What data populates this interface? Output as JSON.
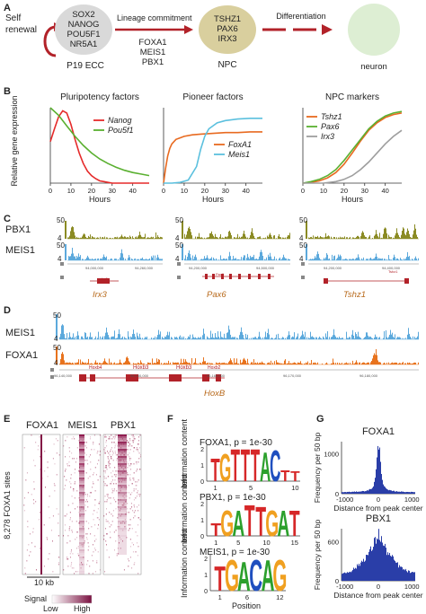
{
  "panel_a": {
    "letter": "A",
    "self_renewal": [
      "Self",
      "renewal"
    ],
    "ecc_factors": [
      "SOX2",
      "NANOG",
      "POU5F1",
      "NR5A1"
    ],
    "ecc_label": "P19 ECC",
    "step1_label": "Lineage commitment",
    "step1_factors": [
      "FOXA1",
      "MEIS1",
      "PBX1"
    ],
    "npc_factors": [
      "TSHZ1",
      "PAX6",
      "IRX3"
    ],
    "npc_label": "NPC",
    "step2_label": "Differentiation",
    "neuron_label": "neuron",
    "colors": {
      "arrow": "#b22229",
      "ecc": "#d9d9d9",
      "npc": "#d9cf9e",
      "neuron": "#ddeed3"
    }
  },
  "panel_b": {
    "letter": "B",
    "ylabel": "Relative gene expression",
    "xlabel": "Hours"
  },
  "chart_data": [
    {
      "type": "line",
      "title": "Pluripotency factors",
      "xlabel": "Hours",
      "ylabel": "Relative gene expression",
      "xlim": [
        0,
        48
      ],
      "ylim": [
        0,
        1
      ],
      "x_ticks": [
        "0",
        "10",
        "20",
        "30",
        "40"
      ],
      "series": [
        {
          "name": "Nanog",
          "color": "#e52a2a",
          "x": [
            0,
            2,
            4,
            6,
            8,
            10,
            12,
            14,
            16,
            18,
            20,
            22,
            24,
            26,
            28,
            30,
            34,
            40,
            48
          ],
          "values": [
            0.55,
            0.72,
            0.88,
            0.96,
            0.93,
            0.78,
            0.58,
            0.4,
            0.26,
            0.16,
            0.1,
            0.06,
            0.03,
            0.02,
            0.01,
            0.0,
            0.0,
            0.0,
            0.0
          ]
        },
        {
          "name": "Pou5f1",
          "color": "#5ab030",
          "x": [
            0,
            4,
            8,
            12,
            16,
            20,
            24,
            28,
            32,
            36,
            40,
            44,
            48
          ],
          "values": [
            1.0,
            0.9,
            0.76,
            0.62,
            0.5,
            0.4,
            0.32,
            0.26,
            0.21,
            0.17,
            0.14,
            0.12,
            0.1
          ]
        }
      ]
    },
    {
      "type": "line",
      "title": "Pioneer factors",
      "xlabel": "Hours",
      "xlim": [
        0,
        48
      ],
      "ylim": [
        0,
        1
      ],
      "x_ticks": [
        "0",
        "10",
        "20",
        "30",
        "40"
      ],
      "series": [
        {
          "name": "FoxA1",
          "color": "#e86a20",
          "x": [
            0,
            1,
            2,
            3,
            4,
            6,
            8,
            10,
            14,
            18,
            24,
            30,
            36,
            42,
            48
          ],
          "values": [
            0.0,
            0.2,
            0.36,
            0.46,
            0.52,
            0.58,
            0.6,
            0.62,
            0.64,
            0.65,
            0.66,
            0.67,
            0.67,
            0.68,
            0.68
          ]
        },
        {
          "name": "Meis1",
          "color": "#5bc0de",
          "x": [
            0,
            4,
            8,
            12,
            16,
            18,
            20,
            22,
            26,
            30,
            36,
            42,
            48
          ],
          "values": [
            0.0,
            0.0,
            0.01,
            0.04,
            0.22,
            0.45,
            0.62,
            0.72,
            0.8,
            0.83,
            0.85,
            0.86,
            0.86
          ]
        }
      ]
    },
    {
      "type": "line",
      "title": "NPC markers",
      "xlabel": "Hours",
      "xlim": [
        0,
        48
      ],
      "ylim": [
        0,
        1
      ],
      "x_ticks": [
        "0",
        "10",
        "20",
        "30",
        "40"
      ],
      "series": [
        {
          "name": "Tshz1",
          "color": "#e86a20",
          "x": [
            0,
            4,
            8,
            12,
            16,
            20,
            24,
            28,
            32,
            36,
            40,
            44,
            48
          ],
          "values": [
            0.0,
            0.01,
            0.03,
            0.07,
            0.14,
            0.25,
            0.4,
            0.56,
            0.7,
            0.8,
            0.87,
            0.91,
            0.93
          ]
        },
        {
          "name": "Pax6",
          "color": "#5ab030",
          "x": [
            0,
            4,
            8,
            12,
            16,
            20,
            24,
            28,
            32,
            36,
            40,
            44,
            48
          ],
          "values": [
            0.0,
            0.02,
            0.05,
            0.1,
            0.18,
            0.3,
            0.44,
            0.58,
            0.72,
            0.82,
            0.89,
            0.93,
            0.95
          ]
        },
        {
          "name": "Irx3",
          "color": "#9e9e9e",
          "x": [
            0,
            10,
            16,
            20,
            24,
            28,
            32,
            36,
            40,
            44,
            48
          ],
          "values": [
            0.0,
            0.0,
            0.02,
            0.05,
            0.1,
            0.18,
            0.28,
            0.4,
            0.52,
            0.62,
            0.7
          ]
        }
      ]
    },
    {
      "type": "bar",
      "title": "FOXA1",
      "xlabel": "Distance from peak center",
      "ylabel": "Frequency per 50 bp",
      "x_ticks": [
        "-1000",
        "0",
        "1000"
      ],
      "y_ticks": [
        "0",
        "1000"
      ],
      "ylim": [
        0,
        1300
      ],
      "x": [
        -1000,
        -900,
        -800,
        -700,
        -600,
        -500,
        -400,
        -300,
        -200,
        -150,
        -100,
        -50,
        0,
        50,
        100,
        150,
        200,
        300,
        400,
        500,
        600,
        700,
        800,
        900,
        1000
      ],
      "values": [
        40,
        45,
        45,
        50,
        55,
        60,
        70,
        90,
        140,
        220,
        400,
        900,
        1250,
        880,
        380,
        210,
        130,
        85,
        70,
        60,
        55,
        50,
        45,
        45,
        40
      ]
    },
    {
      "type": "bar",
      "title": "PBX1",
      "xlabel": "Distance from peak center",
      "ylabel": "Frequency per 50 bp",
      "x_ticks": [
        "-1000",
        "0",
        "1000"
      ],
      "y_ticks": [
        "0",
        "600"
      ],
      "ylim": [
        0,
        800
      ],
      "x": [
        -1000,
        -900,
        -800,
        -700,
        -600,
        -500,
        -400,
        -300,
        -250,
        -200,
        -150,
        -100,
        -50,
        0,
        50,
        100,
        150,
        200,
        250,
        300,
        400,
        500,
        600,
        700,
        800,
        900,
        1000
      ],
      "values": [
        120,
        140,
        160,
        200,
        240,
        300,
        360,
        420,
        460,
        500,
        560,
        620,
        680,
        720,
        670,
        600,
        540,
        490,
        450,
        410,
        350,
        290,
        230,
        190,
        160,
        140,
        120
      ]
    }
  ],
  "panel_c": {
    "letter": "C",
    "tracks": [
      {
        "name": "PBX1",
        "scale_top": "50",
        "scale_bottom": "4",
        "color": "#8b8b24"
      },
      {
        "name": "MEIS1",
        "scale_top": "50",
        "scale_bottom": "4",
        "color": "#5ca9dc"
      }
    ],
    "loci": [
      {
        "label": "Irx3",
        "coord_left": "94,000,000",
        "coord_right": "94,260,000",
        "gene_text": "Irx3"
      },
      {
        "label": "Pax6",
        "coord_left": "94,200,000",
        "coord_right": "94,500,000",
        "gene_text": "Pax6"
      },
      {
        "label": "Tshz1",
        "coord_left": "94,200,000",
        "coord_right": "94,400,000",
        "gene_text": "Tshz1"
      }
    ],
    "label_color": "#b86a1c"
  },
  "panel_d": {
    "letter": "D",
    "tracks": [
      {
        "name": "MEIS1",
        "scale_top": "50",
        "scale_bottom": "4",
        "color": "#5ca9dc"
      },
      {
        "name": "FOXA1",
        "scale_top": "50",
        "scale_bottom": "4",
        "color": "#e8731e"
      }
    ],
    "coords": [
      "96,140,000",
      "96,150,000",
      "96,160,000",
      "96,170,000",
      "96,180,000"
    ],
    "genes": [
      "Hoxb4",
      "Hoxb3",
      "Hoxb3",
      "Hoxb2"
    ],
    "locus_label": "HoxB"
  },
  "panel_e": {
    "letter": "E",
    "columns": [
      "FOXA1",
      "MEIS1",
      "PBX1"
    ],
    "ylabel": "8,278 FOXA1 sites",
    "scale_label": "10 kb",
    "legend_title": "Signal",
    "legend_low": "Low",
    "legend_high": "High",
    "colors": {
      "low": "#ffffff",
      "high": "#7a1040"
    }
  },
  "panel_f": {
    "letter": "F",
    "motifs": [
      {
        "title": "FOXA1, p = 1e-30",
        "ticks": [
          "1",
          "5",
          "10"
        ],
        "letters": "TGTTTACTT"
      },
      {
        "title": "PBX1, p = 1e-30",
        "ticks": [
          "1",
          "5",
          "10",
          "15"
        ],
        "letters": "TGATTGAT"
      },
      {
        "title": "MEIS1, p = 1e-30",
        "ticks": [
          "1",
          "6",
          "12"
        ],
        "letters": "TGACAG"
      }
    ],
    "ylabel": "Information content",
    "xlabel": "Position",
    "yticks": [
      "0",
      "1",
      "2"
    ]
  },
  "panel_g": {
    "letter": "G",
    "bar_color": "#2a3ea8"
  }
}
